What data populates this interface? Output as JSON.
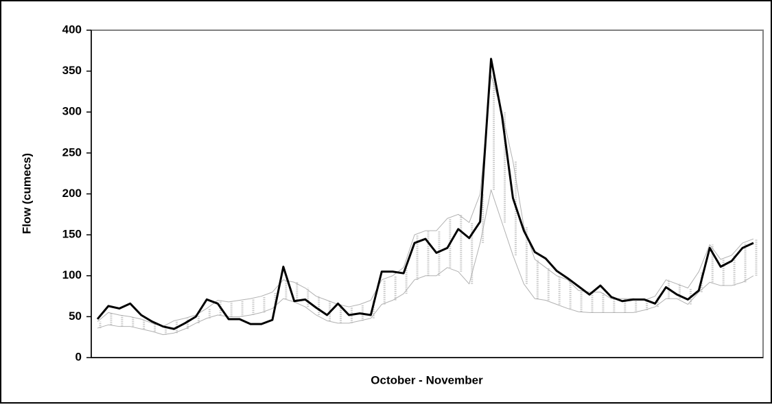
{
  "chart_data": {
    "type": "line",
    "x_label": "October - November",
    "y_label": "Flow (cumecs)",
    "ylim": [
      0,
      400
    ],
    "yticks": [
      0,
      50,
      100,
      150,
      200,
      250,
      300,
      350,
      400
    ],
    "series": [
      {
        "color": "#000000",
        "values": [
          47,
          63,
          60,
          66,
          52,
          44,
          38,
          35,
          42,
          50,
          71,
          66,
          47,
          47,
          41,
          41,
          46,
          111,
          69,
          71,
          61,
          52,
          66,
          52,
          54,
          52,
          105,
          105,
          103,
          140,
          145,
          128,
          134,
          157,
          146,
          166,
          365,
          295,
          195,
          155,
          129,
          121,
          106,
          97,
          87,
          77,
          88,
          74,
          69,
          71,
          71,
          66,
          86,
          77,
          71,
          82,
          134,
          111,
          118,
          134,
          140
        ]
      },
      {
        "color": "#b0b0b0",
        "values": [
          44,
          55,
          52,
          50,
          47,
          42,
          38,
          45,
          48,
          52,
          60,
          70,
          68,
          70,
          72,
          75,
          80,
          95,
          92,
          85,
          75,
          70,
          65,
          62,
          65,
          70,
          95,
          100,
          110,
          150,
          155,
          155,
          170,
          175,
          165,
          200,
          345,
          300,
          240,
          160,
          120,
          110,
          100,
          95,
          82,
          80,
          80,
          72,
          72,
          72,
          70,
          75,
          95,
          90,
          85,
          105,
          138,
          120,
          125,
          140,
          145
        ]
      },
      {
        "color": "#b0b0b0",
        "values": [
          36,
          40,
          38,
          38,
          35,
          32,
          28,
          30,
          35,
          42,
          48,
          52,
          50,
          50,
          52,
          55,
          60,
          72,
          68,
          62,
          52,
          45,
          42,
          42,
          45,
          48,
          65,
          70,
          78,
          95,
          100,
          100,
          110,
          105,
          90,
          140,
          205,
          165,
          125,
          90,
          72,
          70,
          65,
          60,
          56,
          55,
          55,
          55,
          55,
          55,
          58,
          62,
          72,
          72,
          65,
          80,
          92,
          88,
          88,
          92,
          100
        ]
      }
    ]
  }
}
